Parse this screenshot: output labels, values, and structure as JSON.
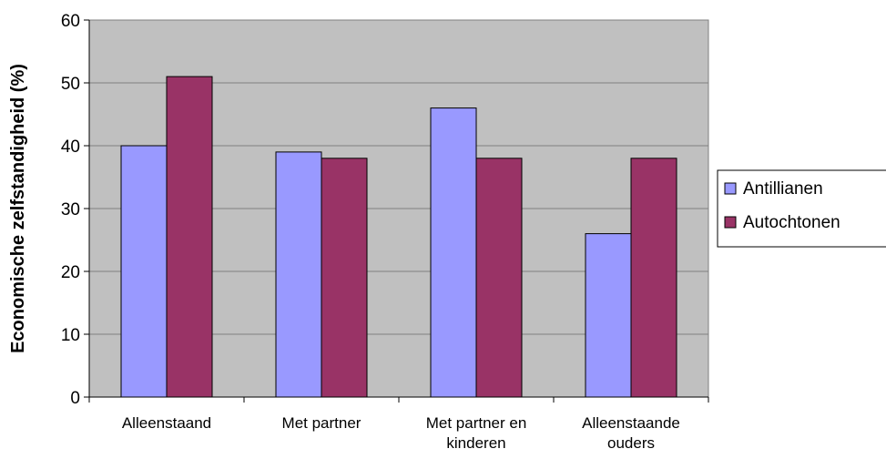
{
  "chart_data": {
    "type": "bar",
    "title": "",
    "xlabel": "",
    "ylabel": "Economische zelfstandigheid (%)",
    "ylim": [
      0,
      60
    ],
    "yticks": [
      0,
      10,
      20,
      30,
      40,
      50,
      60
    ],
    "categories": [
      [
        "Alleenstaand"
      ],
      [
        "Met partner"
      ],
      [
        "Met partner en",
        "kinderen"
      ],
      [
        "Alleenstaande",
        "ouders"
      ]
    ],
    "series": [
      {
        "name": "Antillianen",
        "color": "#9999FF",
        "values": [
          40,
          39,
          46,
          26
        ]
      },
      {
        "name": "Autochtonen",
        "color": "#993366",
        "values": [
          51,
          38,
          38,
          38
        ]
      }
    ],
    "plot_background": "#C0C0C0",
    "grid": true,
    "legend_position": "right"
  }
}
